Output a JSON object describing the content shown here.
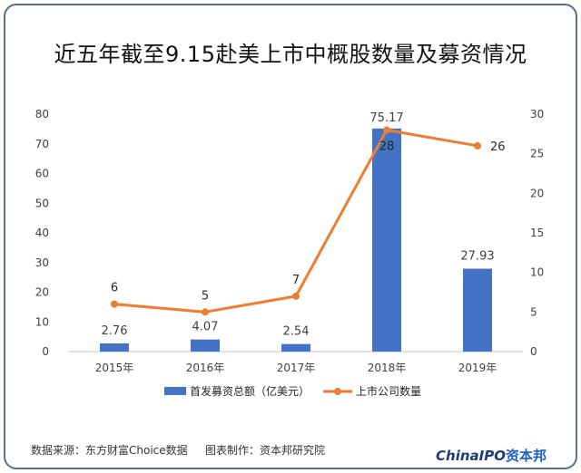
{
  "page": {
    "title": "近五年截至9.15赴美上市中概股数量及募资情况",
    "source": "数据来源：东方财富Choice数据",
    "maker": "图表制作：资本邦研究院",
    "logo_main": "ChinaIPO",
    "logo_accent": "资本邦"
  },
  "colors": {
    "bar": "#4472c4",
    "line": "#ed7d31",
    "frame": "#5a6f8a"
  },
  "chart_data": {
    "type": "bar",
    "title": "近五年截至9.15赴美上市中概股数量及募资情况",
    "categories": [
      "2015年",
      "2016年",
      "2017年",
      "2018年",
      "2019年"
    ],
    "series": [
      {
        "name": "首发募资总额（亿美元）",
        "type": "bar",
        "axis": "left",
        "values": [
          2.76,
          4.07,
          2.54,
          75.17,
          27.93
        ],
        "labels": [
          "2.76",
          "4.07",
          "2.54",
          "75.17",
          "27.93"
        ]
      },
      {
        "name": "上市公司数量",
        "type": "line",
        "axis": "right",
        "values": [
          6,
          5,
          7,
          28,
          26
        ],
        "labels": [
          "6",
          "5",
          "7",
          "28",
          "26"
        ]
      }
    ],
    "ylim_left": [
      0,
      80
    ],
    "yticks_left": [
      "0",
      "10",
      "20",
      "30",
      "40",
      "50",
      "60",
      "70",
      "80"
    ],
    "ylim_right": [
      0,
      30
    ],
    "yticks_right": [
      "0",
      "5",
      "10",
      "15",
      "20",
      "25",
      "30"
    ],
    "grid": false,
    "legend": "bottom"
  }
}
